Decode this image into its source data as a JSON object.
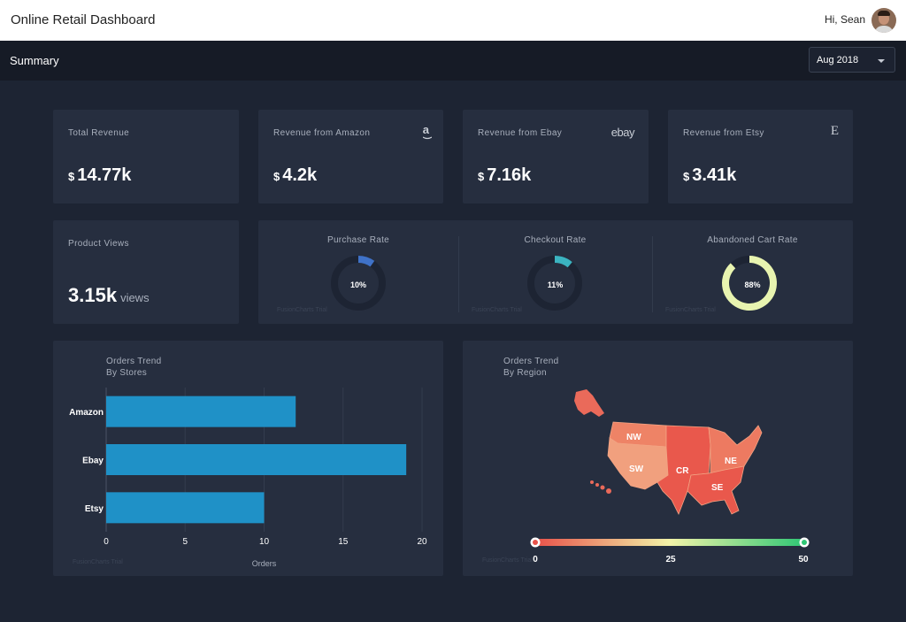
{
  "header": {
    "title": "Online Retail Dashboard",
    "greeting": "Hi, Sean"
  },
  "subheader": {
    "title": "Summary",
    "date_select": "Aug 2018"
  },
  "kpis": [
    {
      "label": "Total Revenue",
      "currency": "$",
      "value": "14.77k",
      "icon": ""
    },
    {
      "label": "Revenue from Amazon",
      "currency": "$",
      "value": "4.2k",
      "icon": "amazon-icon"
    },
    {
      "label": "Revenue from Ebay",
      "currency": "$",
      "value": "7.16k",
      "icon": "ebay-icon"
    },
    {
      "label": "Revenue from Etsy",
      "currency": "$",
      "value": "3.41k",
      "icon": "etsy-icon"
    }
  ],
  "icons": {
    "amazon": "a",
    "ebay": "ebay",
    "etsy": "E"
  },
  "views": {
    "label": "Product Views",
    "value": "3.15k",
    "unit": "views"
  },
  "gauges": [
    {
      "title": "Purchase Rate",
      "value": 10,
      "text": "10%",
      "color": "#3f72c8"
    },
    {
      "title": "Checkout Rate",
      "value": 11,
      "text": "11%",
      "color": "#3bb4c1"
    },
    {
      "title": "Abandoned Cart Rate",
      "value": 88,
      "text": "88%",
      "color": "#e8f4b0"
    }
  ],
  "watermark": "FusionCharts Trial",
  "orders_by_store": {
    "title_line1": "Orders Trend",
    "title_line2": "By Stores",
    "xlabel": "Orders",
    "chart_data": {
      "type": "bar",
      "orientation": "horizontal",
      "categories": [
        "Amazon",
        "Ebay",
        "Etsy"
      ],
      "values": [
        12,
        19,
        10
      ],
      "xlim": [
        0,
        20
      ],
      "ticks": [
        0,
        5,
        10,
        15,
        20
      ],
      "xlabel": "Orders",
      "color": "#1f91c7",
      "grid": true
    }
  },
  "orders_by_region": {
    "title_line1": "Orders Trend",
    "title_line2": "By Region",
    "regions": [
      "NW",
      "SW",
      "CR",
      "NE",
      "SE"
    ],
    "scale": {
      "min": "0",
      "mid": "25",
      "max": "50",
      "colors": [
        "#e8524a",
        "#f2f3a8",
        "#2fc775"
      ]
    }
  }
}
